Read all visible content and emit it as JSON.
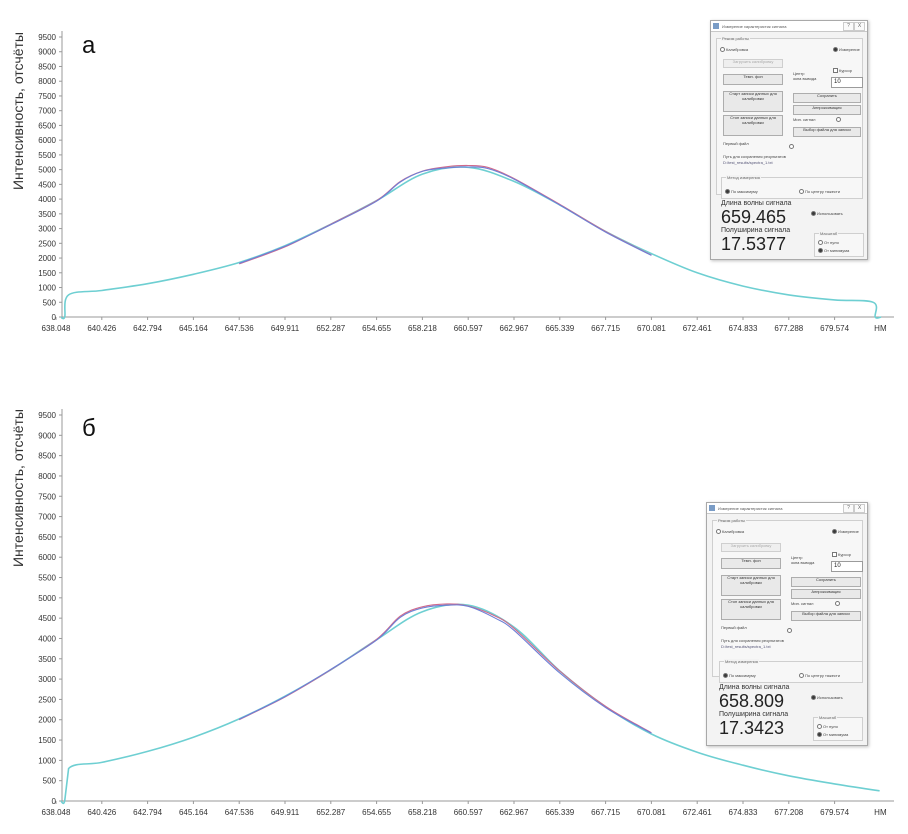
{
  "chart_data": [
    {
      "type": "line",
      "panel_label": "а",
      "ylabel": "Интенсивность, отсчёты",
      "x_unit": "НМ",
      "x_tick_labels": [
        "638.048",
        "640.426",
        "642.794",
        "645.164",
        "647.536",
        "649.911",
        "652.287",
        "654.655",
        "658.218",
        "660.597",
        "662.967",
        "665.339",
        "667.715",
        "670.081",
        "672.461",
        "674.833",
        "677.288",
        "679.574"
      ],
      "y_tick_labels": [
        "0",
        "500",
        "1000",
        "1500",
        "2000",
        "2500",
        "3000",
        "3500",
        "4000",
        "4500",
        "5000",
        "5500",
        "6000",
        "6500",
        "7000",
        "7500",
        "8000",
        "8500",
        "9000",
        "9500"
      ],
      "ylim": [
        0,
        9500
      ],
      "xlim": [
        638.048,
        682.0
      ],
      "series": [
        {
          "color": "#6ecfd2",
          "x": [
            638.3,
            638.5,
            638.7,
            640.426,
            642.794,
            645.164,
            647.536,
            649.911,
            652.287,
            654.655,
            658.218,
            660.597,
            662.967,
            665.339,
            667.715,
            670.081,
            672.461,
            674.833,
            677.288,
            679.574,
            681.5,
            681.6,
            681.9
          ],
          "values": [
            0,
            0,
            750,
            900,
            1130,
            1450,
            1850,
            2420,
            3150,
            3950,
            4850,
            5080,
            4600,
            3800,
            2900,
            2150,
            1500,
            1050,
            750,
            580,
            500,
            0,
            0
          ]
        },
        {
          "color": "#d06a8c",
          "x": [
            647.536,
            649.911,
            652.287,
            654.655,
            656.5,
            658.218,
            659.5,
            660.597,
            661.6,
            662.967,
            665.339,
            667.715,
            670.081
          ],
          "values": [
            1800,
            2380,
            3150,
            3950,
            4600,
            4950,
            5100,
            5140,
            5080,
            4700,
            3820,
            2900,
            2100
          ]
        },
        {
          "color": "#6c7fd6",
          "x": [
            647.536,
            649.911,
            652.287,
            654.655,
            656.5,
            658.218,
            659.5,
            660.597,
            661.6,
            662.967,
            665.339,
            667.715,
            670.081
          ],
          "values": [
            1820,
            2400,
            3130,
            3930,
            4580,
            4940,
            5060,
            5090,
            5040,
            4680,
            3800,
            2880,
            2090
          ]
        }
      ]
    },
    {
      "type": "line",
      "panel_label": "б",
      "ylabel": "Интенсивность, отсчёты",
      "x_unit": "НМ",
      "x_tick_labels": [
        "638.048",
        "640.426",
        "642.794",
        "645.164",
        "647.536",
        "649.911",
        "652.287",
        "654.655",
        "658.218",
        "660.597",
        "662.967",
        "665.339",
        "667.715",
        "670.081",
        "672.461",
        "674.833",
        "677.208",
        "679.574"
      ],
      "y_tick_labels": [
        "0",
        "500",
        "1000",
        "1500",
        "2000",
        "2500",
        "3000",
        "3500",
        "4000",
        "4500",
        "5000",
        "5500",
        "6000",
        "6500",
        "7000",
        "7500",
        "8000",
        "8500",
        "9000",
        "9500"
      ],
      "ylim": [
        0,
        9500
      ],
      "xlim": [
        638.048,
        682.0
      ],
      "series": [
        {
          "color": "#6ecfd2",
          "x": [
            638.3,
            638.5,
            638.7,
            640.426,
            642.794,
            645.164,
            647.536,
            649.911,
            652.287,
            654.655,
            658.218,
            660.597,
            662.967,
            665.339,
            667.715,
            670.081,
            672.461,
            674.833,
            677.208,
            679.574,
            681.9
          ],
          "values": [
            0,
            0,
            800,
            950,
            1220,
            1570,
            2020,
            2580,
            3230,
            3970,
            4660,
            4820,
            4280,
            3200,
            2320,
            1650,
            1200,
            880,
            620,
            420,
            250
          ]
        },
        {
          "color": "#d06a8c",
          "x": [
            647.536,
            649.911,
            652.287,
            654.655,
            656.5,
            658.218,
            659.5,
            660.597,
            662.0,
            662.967,
            665.339,
            667.715,
            670.081
          ],
          "values": [
            2000,
            2560,
            3230,
            3980,
            4550,
            4780,
            4850,
            4800,
            4550,
            4250,
            3200,
            2330,
            1680
          ]
        },
        {
          "color": "#6c7fd6",
          "x": [
            647.536,
            649.911,
            652.287,
            654.655,
            656.5,
            658.218,
            659.5,
            660.597,
            662.0,
            662.967,
            665.339,
            667.715,
            670.081
          ],
          "values": [
            2010,
            2570,
            3240,
            3960,
            4520,
            4750,
            4820,
            4790,
            4500,
            4200,
            3150,
            2300,
            1670
          ]
        }
      ]
    }
  ],
  "dialogs": [
    {
      "title": "Измерение характеристик сигнала",
      "group_mode": "Режим работы",
      "radio_calibration": "Калибровка",
      "radio_measure": "Измерение",
      "btn_load_calibration": "Загрузить калибровку",
      "btn_dark": "Темн. фон",
      "label_center": "Центр",
      "label_window": "окна вывода",
      "label_cursor": "Курсор",
      "input_value": "10",
      "btn_start_cal": "Старт записи данных для калибровки",
      "btn_save": "Сохранить",
      "btn_stop_cal": "Стоп записи данных для калибровки",
      "btn_approx": "Аппроксимация",
      "label_min_signal": "Мин. сигнал",
      "btn_select_file": "Выбор файла для записи",
      "label_first_file": "Первый файл",
      "label_path": "Путь для сохранения результатов",
      "path_value": "D:/test_results/spectra_1.txt",
      "group_method": "Метод измерения",
      "radio_method_1": "По максимуму",
      "radio_method_2": "По центру тяжести",
      "label_wavelength": "Длина волны сигнала",
      "wavelength_value": "659.465",
      "label_use": "Использовать",
      "label_fwhm": "Полуширина сигнала",
      "fwhm_value": "17.5377",
      "group_scale": "Масштаб",
      "radio_scale_1": "От нуля",
      "radio_scale_2": "От минимума",
      "btn_help": "?",
      "btn_close": "X"
    },
    {
      "title": "Измерение характеристик сигнала",
      "group_mode": "Режим работы",
      "radio_calibration": "Калибровка",
      "radio_measure": "Измерение",
      "btn_load_calibration": "Загрузить калибровку",
      "btn_dark": "Темн. фон",
      "label_center": "Центр",
      "label_window": "окна вывода",
      "label_cursor": "Курсор",
      "input_value": "10",
      "btn_start_cal": "Старт записи данных для калибровки",
      "btn_save": "Сохранить",
      "btn_stop_cal": "Стоп записи данных для калибровки",
      "btn_approx": "Аппроксимация",
      "label_min_signal": "Мин. сигнал",
      "btn_select_file": "Выбор файла для записи",
      "label_first_file": "Первый файл",
      "label_path": "Путь для сохранения результатов",
      "path_value": "D:/test_results/spectra_1.txt",
      "group_method": "Метод измерения",
      "radio_method_1": "По максимуму",
      "radio_method_2": "По центру тяжести",
      "label_wavelength": "Длина волны сигнала",
      "wavelength_value": "658.809",
      "label_use": "Использовать",
      "label_fwhm": "Полуширина сигнала",
      "fwhm_value": "17.3423",
      "group_scale": "Масштаб",
      "radio_scale_1": "От нуля",
      "radio_scale_2": "От минимума",
      "btn_help": "?",
      "btn_close": "X"
    }
  ]
}
